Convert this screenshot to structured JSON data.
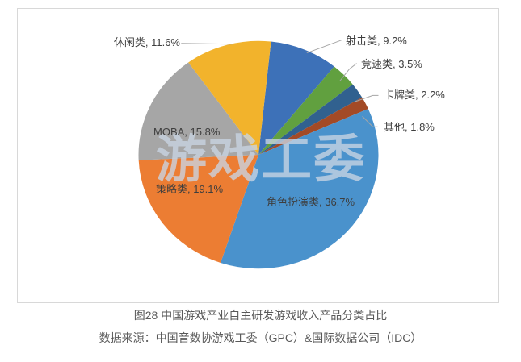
{
  "watermark": "游戏工委",
  "caption": {
    "title": "图28 中国游戏产业自主研发游戏收入产品分类占比",
    "source": "数据来源：中国音数协游戏工委（GPC）&国际数据公司（IDC）"
  },
  "chart_data": {
    "type": "pie",
    "title": "图28 中国游戏产业自主研发游戏收入产品分类占比",
    "source": "数据来源：中国音数协游戏工委（GPC）&国际数据公司（IDC）",
    "legend": "none",
    "label_format": "{label}, {value}%",
    "direction": "clockwise",
    "start_angle_deg": 6,
    "slices": [
      {
        "label": "射击类",
        "value": 9.2,
        "color": "#3d71b8"
      },
      {
        "label": "竞速类",
        "value": 3.5,
        "color": "#61a03f"
      },
      {
        "label": "卡牌类",
        "value": 2.2,
        "color": "#31618f"
      },
      {
        "label": "其他",
        "value": 1.8,
        "color": "#a34a26"
      },
      {
        "label": "角色扮演类",
        "value": 36.7,
        "color": "#4a92cc"
      },
      {
        "label": "策略类",
        "value": 19.1,
        "color": "#ec7d33"
      },
      {
        "label": "MOBA",
        "value": 15.8,
        "color": "#a6a6a6"
      },
      {
        "label": "休闲类",
        "value": 11.6,
        "color": "#f2b32c"
      }
    ],
    "leader_line_color": "#a6a6a6",
    "label_text_color": "#3e3e3e"
  }
}
